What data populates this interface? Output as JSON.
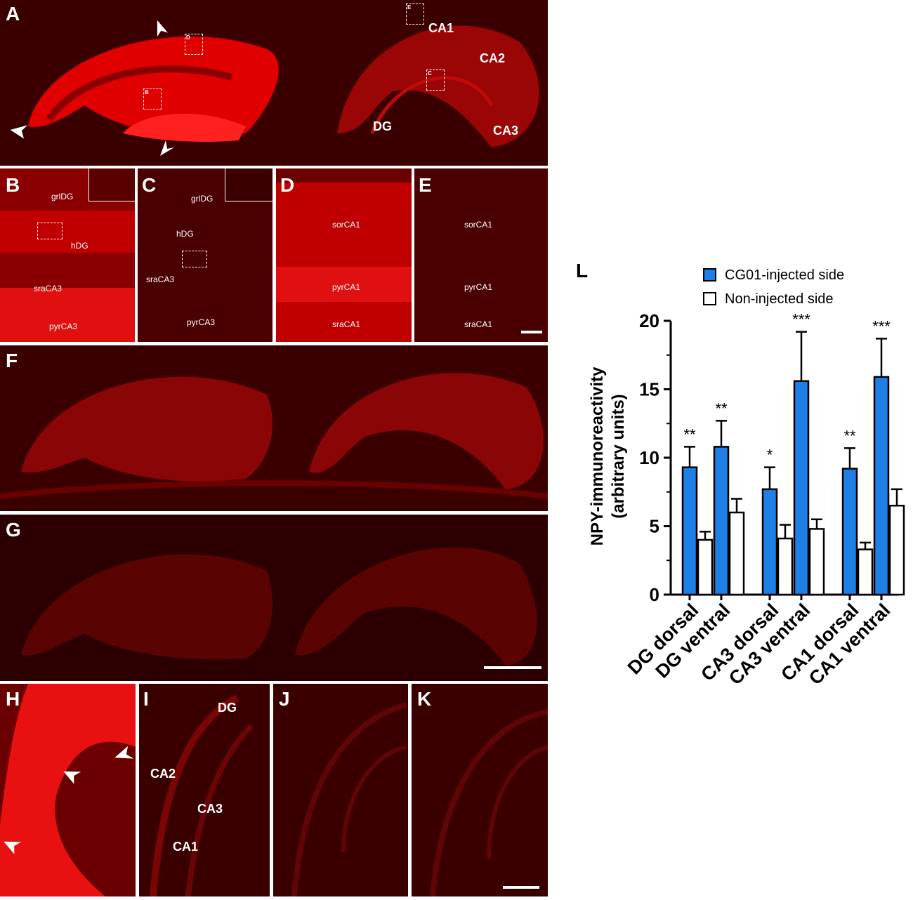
{
  "panels": {
    "A": {
      "label": "A",
      "regions": [
        "CA1",
        "CA2",
        "CA3",
        "DG"
      ],
      "boxes": [
        "D",
        "B",
        "E",
        "C"
      ]
    },
    "B": {
      "label": "B",
      "regions": [
        "grlDG",
        "hDG",
        "sraCA3",
        "pyrCA3"
      ]
    },
    "C": {
      "label": "C",
      "regions": [
        "grlDG",
        "hDG",
        "sraCA3",
        "pyrCA3"
      ]
    },
    "D": {
      "label": "D",
      "regions": [
        "sorCA1",
        "pyrCA1",
        "sraCA1"
      ]
    },
    "E": {
      "label": "E",
      "regions": [
        "sorCA1",
        "pyrCA1",
        "sraCA1"
      ]
    },
    "F": {
      "label": "F"
    },
    "G": {
      "label": "G"
    },
    "H": {
      "label": "H"
    },
    "I": {
      "label": "I",
      "regions": [
        "DG",
        "CA2",
        "CA3",
        "CA1"
      ]
    },
    "J": {
      "label": "J"
    },
    "K": {
      "label": "K"
    },
    "L": {
      "label": "L"
    }
  },
  "colors": {
    "signal": "#ff1a1a",
    "background": "#2a0000",
    "bar_injected": "#1e7fe6",
    "bar_noninjected": "#ffffff"
  },
  "chart_data": {
    "type": "bar",
    "title": "",
    "ylabel": "NPY-immunoreactivity (arbitrary units)",
    "ylabel_line1": "NPY-immunoreactivity",
    "ylabel_line2": "(arbitrary units)",
    "xlabel": "",
    "ylim": [
      0,
      20
    ],
    "yticks": [
      0,
      5,
      10,
      15,
      20
    ],
    "legend_position": "top",
    "categories": [
      "DG dorsal",
      "DG ventral",
      "CA3 dorsal",
      "CA3 ventral",
      "CA1 dorsal",
      "CA1 ventral"
    ],
    "series": [
      {
        "name": "CG01-injected side",
        "color": "#1e7fe6",
        "values": [
          9.3,
          10.8,
          7.7,
          15.6,
          9.2,
          15.9
        ],
        "errors": [
          1.5,
          1.9,
          1.6,
          3.6,
          1.5,
          2.8
        ]
      },
      {
        "name": "Non-injected side",
        "color": "#ffffff",
        "values": [
          4.0,
          6.0,
          4.1,
          4.8,
          3.3,
          6.5
        ],
        "errors": [
          0.6,
          1.0,
          1.0,
          0.7,
          0.5,
          1.2
        ]
      }
    ],
    "significance": [
      "**",
      "**",
      "*",
      "***",
      "**",
      "***"
    ]
  }
}
